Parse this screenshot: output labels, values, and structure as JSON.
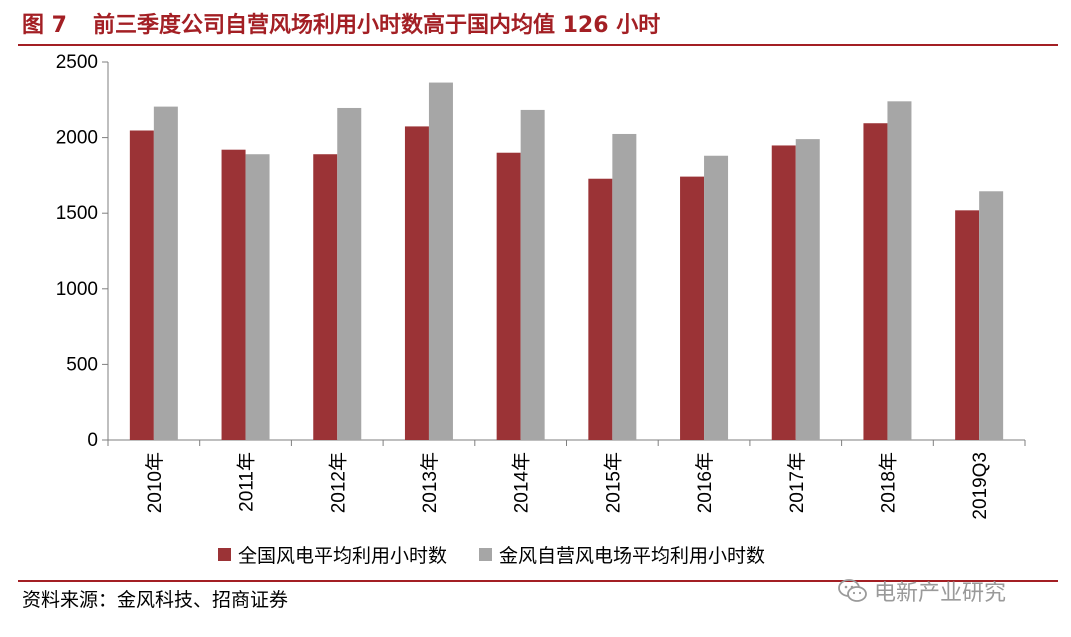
{
  "figure": {
    "number": "图 7",
    "title": "前三季度公司自营风场利用小时数高于国内均值 126 小时"
  },
  "source_text": "资料来源：金风科技、招商证券",
  "watermark_text": "电新产业研究",
  "colors": {
    "accent": "#a31f24",
    "series1": "#9b3336",
    "series2": "#a6a6a6"
  },
  "chart_data": {
    "type": "bar",
    "categories": [
      "2010年",
      "2011年",
      "2012年",
      "2013年",
      "2014年",
      "2015年",
      "2016年",
      "2017年",
      "2018年",
      "2019Q3"
    ],
    "series": [
      {
        "name": "全国风电平均利用小时数",
        "values": [
          2047,
          1920,
          1890,
          2074,
          1900,
          1728,
          1742,
          1948,
          2095,
          1519
        ]
      },
      {
        "name": "金风自营风电场平均利用小时数",
        "values": [
          2205,
          1890,
          2196,
          2364,
          2183,
          2024,
          1880,
          1990,
          2240,
          1645
        ]
      }
    ],
    "ylim": [
      0,
      2500
    ],
    "yticks": [
      0,
      500,
      1000,
      1500,
      2000,
      2500
    ],
    "legend_position": "bottom",
    "grid": false
  }
}
